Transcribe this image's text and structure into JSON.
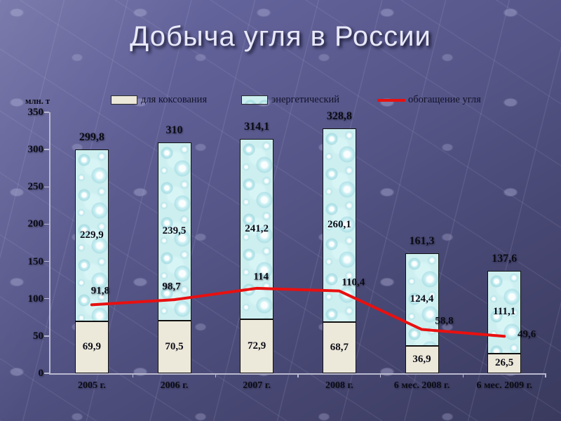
{
  "slide": {
    "title": "Добыча угля в России"
  },
  "chart_data": {
    "type": "bar",
    "subtype": "stacked-bars-with-line-overlay",
    "title": "Добыча угля в России",
    "unit_label": "млн. т",
    "decimal_separator": ",",
    "legend_position": "top",
    "grid": false,
    "categories": [
      "2005 г.",
      "2006 г.",
      "2007 г.",
      "2008 г.",
      "6 мес. 2008 г.",
      "6 мес. 2009 г."
    ],
    "series": [
      {
        "name": "для коксования",
        "type": "bar",
        "color": "#ece8da",
        "values": [
          69.9,
          70.5,
          72.9,
          68.7,
          36.9,
          26.5
        ]
      },
      {
        "name": "энергетический",
        "type": "bar",
        "color": "#cdeff0",
        "values": [
          229.9,
          239.5,
          241.2,
          260.1,
          124.4,
          111.1
        ]
      },
      {
        "name": "обогащение угля",
        "type": "line",
        "color": "#e81010",
        "values": [
          91.8,
          98.7,
          114,
          110.4,
          58.8,
          49.6
        ]
      }
    ],
    "stack_totals": [
      299.8,
      310,
      314.1,
      328.8,
      161.3,
      137.6
    ],
    "ylim": [
      0,
      350
    ],
    "y_ticks": [
      0,
      50,
      100,
      150,
      200,
      250,
      300,
      350
    ]
  }
}
